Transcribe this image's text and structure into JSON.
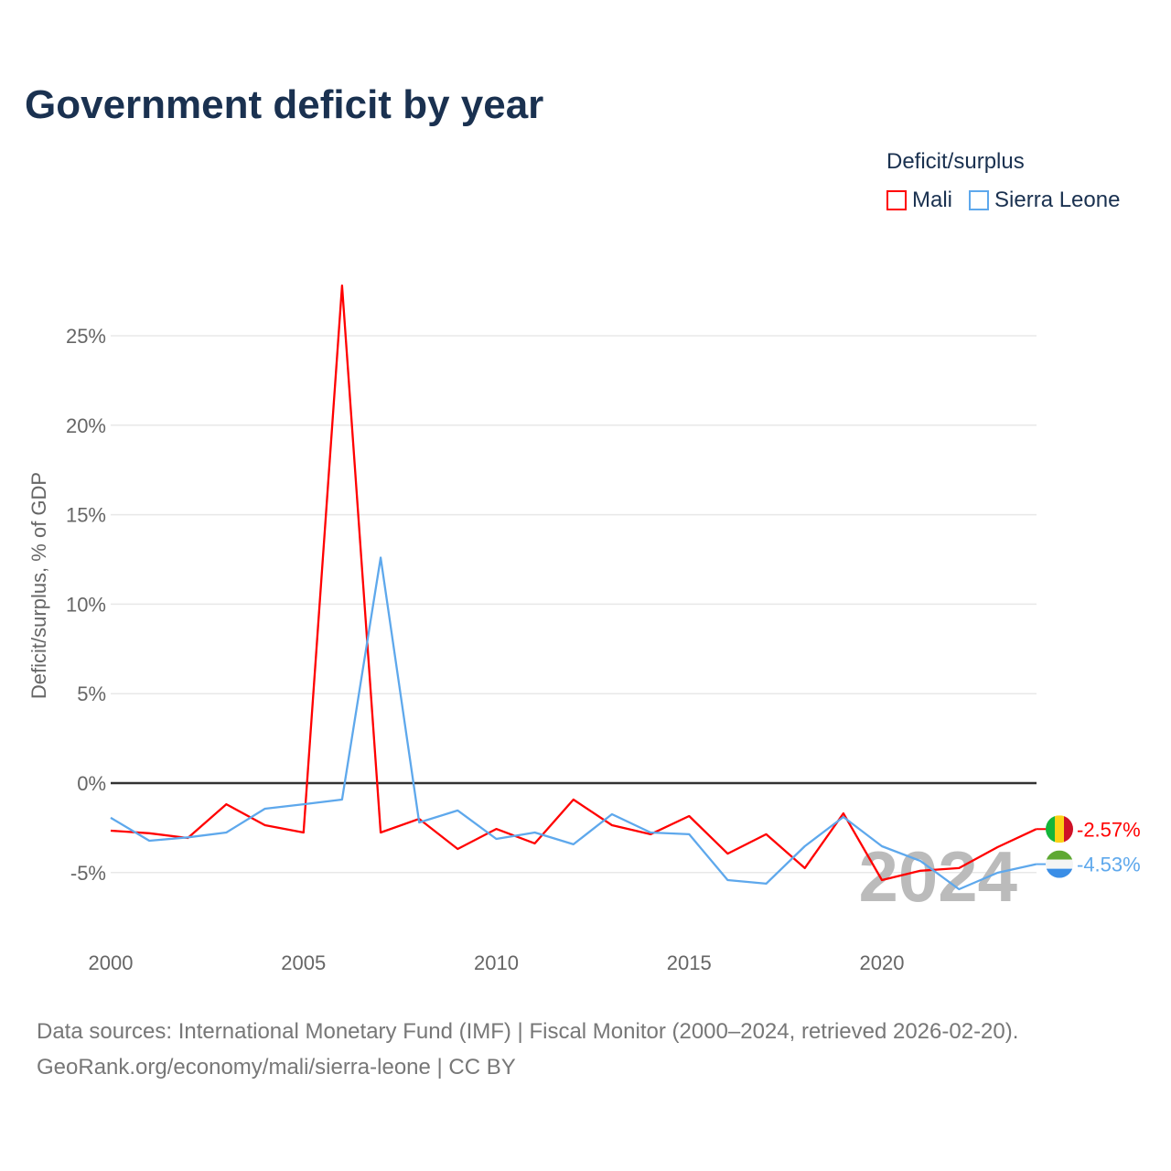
{
  "chart_data": {
    "type": "line",
    "title": "Government deficit by year",
    "ylabel": "Deficit/surplus, % of GDP",
    "xlabel": "",
    "x": [
      2000,
      2001,
      2002,
      2003,
      2004,
      2005,
      2006,
      2007,
      2008,
      2009,
      2010,
      2011,
      2012,
      2013,
      2014,
      2015,
      2016,
      2017,
      2018,
      2019,
      2020,
      2021,
      2022,
      2023,
      2024
    ],
    "xticks": [
      2000,
      2005,
      2010,
      2015,
      2020
    ],
    "xtick_labels": [
      "2000",
      "2005",
      "2010",
      "2015",
      "2020"
    ],
    "yticks": [
      -5,
      0,
      5,
      10,
      15,
      20,
      25
    ],
    "ytick_labels": [
      "-5%",
      "0%",
      "5%",
      "10%",
      "15%",
      "20%",
      "25%"
    ],
    "xlim": [
      2000,
      2024
    ],
    "ylim": [
      -8.7,
      30
    ],
    "grid": true,
    "legend_title": "Deficit/surplus",
    "legend_position": "top-right",
    "watermark_year": "2024",
    "series": [
      {
        "name": "Mali",
        "color": "#ff0000",
        "end_label": "-2.57%",
        "values": [
          -2.66,
          -2.8,
          -3.07,
          -1.18,
          -2.35,
          -2.76,
          27.8,
          -2.76,
          -2.0,
          -3.68,
          -2.56,
          -3.37,
          -0.92,
          -2.35,
          -2.86,
          -1.84,
          -3.94,
          -2.86,
          -4.75,
          -1.69,
          -5.42,
          -4.9,
          -4.75,
          -3.58,
          -2.57
        ]
      },
      {
        "name": "Sierra Leone",
        "color": "#5ea8ec",
        "end_label": "-4.53%",
        "values": [
          -1.94,
          -3.22,
          -3.03,
          -2.76,
          -1.43,
          -1.18,
          -0.92,
          12.6,
          -2.2,
          -1.53,
          -3.12,
          -2.76,
          -3.42,
          -1.74,
          -2.76,
          -2.86,
          -5.42,
          -5.62,
          -3.53,
          -1.89,
          -3.53,
          -4.35,
          -5.93,
          -5.01,
          -4.53
        ]
      }
    ]
  },
  "footer": {
    "line1": "Data sources: International Monetary Fund (IMF) | Fiscal Monitor (2000–2024, retrieved 2026-02-20).",
    "line2": "GeoRank.org/economy/mali/sierra-leone | CC BY"
  }
}
